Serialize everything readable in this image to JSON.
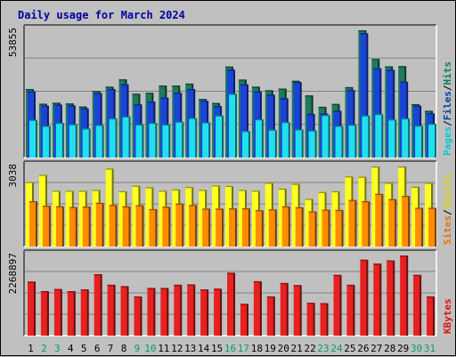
{
  "chart_data": {
    "type": "bar",
    "title": "Daily usage for March 2024",
    "categories": [
      "1",
      "2",
      "3",
      "4",
      "5",
      "6",
      "7",
      "8",
      "9",
      "10",
      "11",
      "12",
      "13",
      "14",
      "15",
      "16",
      "17",
      "18",
      "19",
      "20",
      "21",
      "22",
      "23",
      "24",
      "25",
      "26",
      "27",
      "28",
      "29",
      "30",
      "31"
    ],
    "weekend_days": [
      2,
      3,
      9,
      10,
      16,
      17,
      23,
      24,
      30,
      31
    ],
    "panels": [
      {
        "name": "hits-files-pages",
        "ymax_label": "53855",
        "ylim": [
          0,
          53855
        ],
        "legend": [
          {
            "text": "Pages",
            "color": "#00c8d8"
          },
          {
            "text": "/",
            "color": "#000000"
          },
          {
            "text": "Files",
            "color": "#0040a0"
          },
          {
            "text": "/",
            "color": "#000000"
          },
          {
            "text": "Hits",
            "color": "#008060"
          }
        ],
        "series": [
          {
            "name": "Hits",
            "color": "#1e7a5a",
            "values": [
              29000,
              22800,
              23200,
              22900,
              21600,
              28200,
              30000,
              33100,
              27000,
              27400,
              30500,
              30500,
              31300,
              24800,
              23100,
              38500,
              33000,
              30000,
              28500,
              29200,
              32500,
              26300,
              21500,
              22700,
              29800,
              53855,
              41700,
              38600,
              38700,
              22600,
              19800
            ]
          },
          {
            "name": "Files",
            "color": "#1a44d8",
            "values": [
              28000,
              22000,
              22400,
              22100,
              20800,
              27300,
              29000,
              31000,
              22500,
              23700,
              25400,
              27400,
              29000,
              24000,
              21800,
              37200,
              31000,
              28000,
              26600,
              25100,
              32000,
              18500,
              18600,
              19800,
              28600,
              52600,
              37800,
              37100,
              32100,
              22000,
              18700
            ]
          },
          {
            "name": "Pages",
            "color": "#20e0f0",
            "values": [
              16000,
              13400,
              14700,
              14100,
              12300,
              13800,
              16600,
              17400,
              14000,
              14700,
              14000,
              15200,
              16700,
              14900,
              17800,
              27000,
              11200,
              16200,
              11800,
              15000,
              11900,
              11500,
              18000,
              13400,
              13900,
              17800,
              18400,
              16100,
              16600,
              13500,
              14300
            ]
          }
        ]
      },
      {
        "name": "visits-sites",
        "ymax_label": "3038",
        "ylim": [
          0,
          3038
        ],
        "legend": [
          {
            "text": "Sites",
            "color": "#e87010"
          },
          {
            "text": "/",
            "color": "#000000"
          },
          {
            "text": "Visits",
            "color": "#d8d800"
          }
        ],
        "series": [
          {
            "name": "Visits",
            "color": "#ffff20",
            "values": [
              2450,
              2720,
              2120,
              2120,
              2120,
              2150,
              2960,
              2100,
              2310,
              2250,
              2120,
              2170,
              2260,
              2150,
              2320,
              2300,
              2150,
              2120,
              2420,
              2200,
              2380,
              1810,
              2070,
              2100,
              2660,
              2650,
              3038,
              2420,
              3038,
              2270,
              2420
            ]
          },
          {
            "name": "Sites",
            "color": "#ff8c00",
            "values": [
              1720,
              1550,
              1530,
              1500,
              1520,
              1660,
              1580,
              1530,
              1570,
              1420,
              1510,
              1630,
              1580,
              1440,
              1440,
              1450,
              1450,
              1380,
              1410,
              1530,
              1490,
              1330,
              1400,
              1390,
              1770,
              1720,
              2000,
              1800,
              1920,
              1470,
              1470
            ]
          }
        ]
      },
      {
        "name": "kbytes",
        "ymax_label": "2268897",
        "ylim": [
          0,
          2268897
        ],
        "legend": [
          {
            "text": "KBytes",
            "color": "#e01010"
          }
        ],
        "series": [
          {
            "name": "KBytes",
            "color": "#e82020",
            "values": [
              1530000,
              1260000,
              1320000,
              1260000,
              1310000,
              1740000,
              1440000,
              1400000,
              1110000,
              1350000,
              1350000,
              1440000,
              1450000,
              1310000,
              1330000,
              1780000,
              900000,
              1540000,
              1110000,
              1490000,
              1430000,
              930000,
              920000,
              1720000,
              1440000,
              2150000,
              2040000,
              2130000,
              2268897,
              1720000,
              1110000
            ]
          }
        ]
      }
    ]
  }
}
